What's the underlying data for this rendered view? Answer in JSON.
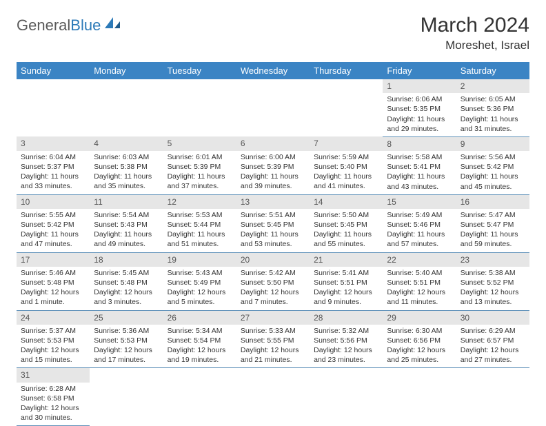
{
  "logo": {
    "general": "General",
    "blue": "Blue"
  },
  "title": {
    "month": "March 2024",
    "location": "Moreshet, Israel"
  },
  "header_color": "#3b84c4",
  "daynum_bg": "#e6e6e6",
  "row_border": "#5c8fb8",
  "weekdays": [
    "Sunday",
    "Monday",
    "Tuesday",
    "Wednesday",
    "Thursday",
    "Friday",
    "Saturday"
  ],
  "weeks": [
    [
      null,
      null,
      null,
      null,
      null,
      {
        "n": "1",
        "sunrise": "6:06 AM",
        "sunset": "5:35 PM",
        "daylight": "11 hours and 29 minutes."
      },
      {
        "n": "2",
        "sunrise": "6:05 AM",
        "sunset": "5:36 PM",
        "daylight": "11 hours and 31 minutes."
      }
    ],
    [
      {
        "n": "3",
        "sunrise": "6:04 AM",
        "sunset": "5:37 PM",
        "daylight": "11 hours and 33 minutes."
      },
      {
        "n": "4",
        "sunrise": "6:03 AM",
        "sunset": "5:38 PM",
        "daylight": "11 hours and 35 minutes."
      },
      {
        "n": "5",
        "sunrise": "6:01 AM",
        "sunset": "5:39 PM",
        "daylight": "11 hours and 37 minutes."
      },
      {
        "n": "6",
        "sunrise": "6:00 AM",
        "sunset": "5:39 PM",
        "daylight": "11 hours and 39 minutes."
      },
      {
        "n": "7",
        "sunrise": "5:59 AM",
        "sunset": "5:40 PM",
        "daylight": "11 hours and 41 minutes."
      },
      {
        "n": "8",
        "sunrise": "5:58 AM",
        "sunset": "5:41 PM",
        "daylight": "11 hours and 43 minutes."
      },
      {
        "n": "9",
        "sunrise": "5:56 AM",
        "sunset": "5:42 PM",
        "daylight": "11 hours and 45 minutes."
      }
    ],
    [
      {
        "n": "10",
        "sunrise": "5:55 AM",
        "sunset": "5:42 PM",
        "daylight": "11 hours and 47 minutes."
      },
      {
        "n": "11",
        "sunrise": "5:54 AM",
        "sunset": "5:43 PM",
        "daylight": "11 hours and 49 minutes."
      },
      {
        "n": "12",
        "sunrise": "5:53 AM",
        "sunset": "5:44 PM",
        "daylight": "11 hours and 51 minutes."
      },
      {
        "n": "13",
        "sunrise": "5:51 AM",
        "sunset": "5:45 PM",
        "daylight": "11 hours and 53 minutes."
      },
      {
        "n": "14",
        "sunrise": "5:50 AM",
        "sunset": "5:45 PM",
        "daylight": "11 hours and 55 minutes."
      },
      {
        "n": "15",
        "sunrise": "5:49 AM",
        "sunset": "5:46 PM",
        "daylight": "11 hours and 57 minutes."
      },
      {
        "n": "16",
        "sunrise": "5:47 AM",
        "sunset": "5:47 PM",
        "daylight": "11 hours and 59 minutes."
      }
    ],
    [
      {
        "n": "17",
        "sunrise": "5:46 AM",
        "sunset": "5:48 PM",
        "daylight": "12 hours and 1 minute."
      },
      {
        "n": "18",
        "sunrise": "5:45 AM",
        "sunset": "5:48 PM",
        "daylight": "12 hours and 3 minutes."
      },
      {
        "n": "19",
        "sunrise": "5:43 AM",
        "sunset": "5:49 PM",
        "daylight": "12 hours and 5 minutes."
      },
      {
        "n": "20",
        "sunrise": "5:42 AM",
        "sunset": "5:50 PM",
        "daylight": "12 hours and 7 minutes."
      },
      {
        "n": "21",
        "sunrise": "5:41 AM",
        "sunset": "5:51 PM",
        "daylight": "12 hours and 9 minutes."
      },
      {
        "n": "22",
        "sunrise": "5:40 AM",
        "sunset": "5:51 PM",
        "daylight": "12 hours and 11 minutes."
      },
      {
        "n": "23",
        "sunrise": "5:38 AM",
        "sunset": "5:52 PM",
        "daylight": "12 hours and 13 minutes."
      }
    ],
    [
      {
        "n": "24",
        "sunrise": "5:37 AM",
        "sunset": "5:53 PM",
        "daylight": "12 hours and 15 minutes."
      },
      {
        "n": "25",
        "sunrise": "5:36 AM",
        "sunset": "5:53 PM",
        "daylight": "12 hours and 17 minutes."
      },
      {
        "n": "26",
        "sunrise": "5:34 AM",
        "sunset": "5:54 PM",
        "daylight": "12 hours and 19 minutes."
      },
      {
        "n": "27",
        "sunrise": "5:33 AM",
        "sunset": "5:55 PM",
        "daylight": "12 hours and 21 minutes."
      },
      {
        "n": "28",
        "sunrise": "5:32 AM",
        "sunset": "5:56 PM",
        "daylight": "12 hours and 23 minutes."
      },
      {
        "n": "29",
        "sunrise": "6:30 AM",
        "sunset": "6:56 PM",
        "daylight": "12 hours and 25 minutes."
      },
      {
        "n": "30",
        "sunrise": "6:29 AM",
        "sunset": "6:57 PM",
        "daylight": "12 hours and 27 minutes."
      }
    ],
    [
      {
        "n": "31",
        "sunrise": "6:28 AM",
        "sunset": "6:58 PM",
        "daylight": "12 hours and 30 minutes."
      },
      null,
      null,
      null,
      null,
      null,
      null
    ]
  ]
}
